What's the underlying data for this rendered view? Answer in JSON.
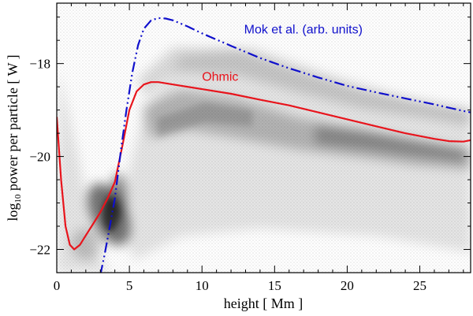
{
  "chart_data": {
    "type": "line",
    "title": "",
    "xlabel": "height  [ Mm ]",
    "ylabel_prefix": "log",
    "ylabel_subscript": "10",
    "ylabel_rest": "  power per particle  [ W ]",
    "xlim": [
      0,
      28.5
    ],
    "ylim": [
      -22.5,
      -16.7
    ],
    "xticks": [
      0,
      5,
      10,
      15,
      20,
      25
    ],
    "xtick_labels": [
      "0",
      "5",
      "10",
      "15",
      "20",
      "25"
    ],
    "yticks": [
      -22,
      -20,
      -18
    ],
    "ytick_labels": [
      "−22",
      "−20",
      "−18"
    ],
    "background": "grayscale 2D histogram of power per particle vs. height",
    "series": [
      {
        "name": "Ohmic",
        "color": "#e8141c",
        "style": "solid",
        "x": [
          0,
          0.3,
          0.6,
          0.9,
          1.2,
          1.6,
          2.0,
          2.5,
          3.0,
          3.5,
          4.0,
          4.5,
          5.0,
          5.5,
          6.0,
          6.5,
          7.0,
          8,
          10,
          12,
          14,
          16,
          18,
          20,
          22,
          24,
          26,
          27,
          28,
          28.5
        ],
        "y": [
          -19.15,
          -20.5,
          -21.5,
          -21.9,
          -22.0,
          -21.9,
          -21.7,
          -21.45,
          -21.2,
          -20.9,
          -20.55,
          -19.8,
          -19.0,
          -18.6,
          -18.45,
          -18.4,
          -18.4,
          -18.45,
          -18.55,
          -18.65,
          -18.78,
          -18.9,
          -19.05,
          -19.2,
          -19.35,
          -19.5,
          -19.62,
          -19.67,
          -19.68,
          -19.65
        ]
      },
      {
        "name": "Mok et al.  (arb. units)",
        "color": "#1010cc",
        "style": "dash-dot-dot",
        "x": [
          3.0,
          3.3,
          3.6,
          4.0,
          4.4,
          4.8,
          5.2,
          5.6,
          6.0,
          6.5,
          7.0,
          7.5,
          8,
          9,
          10,
          12,
          14,
          16,
          18,
          20,
          22,
          24,
          26,
          27,
          28,
          28.5
        ],
        "y": [
          -22.55,
          -22.1,
          -21.6,
          -20.9,
          -19.9,
          -19.0,
          -18.2,
          -17.6,
          -17.25,
          -17.07,
          -17.02,
          -17.03,
          -17.07,
          -17.2,
          -17.35,
          -17.62,
          -17.88,
          -18.1,
          -18.3,
          -18.48,
          -18.62,
          -18.75,
          -18.88,
          -18.95,
          -19.02,
          -19.05
        ]
      }
    ],
    "annotations": [
      {
        "text": "Mok et al.  (arb. units)",
        "x": 12.9,
        "y": -17.35,
        "color": "#1010cc"
      },
      {
        "text": "Ohmic",
        "x": 10.0,
        "y": -18.37,
        "color": "#e8141c"
      }
    ]
  }
}
